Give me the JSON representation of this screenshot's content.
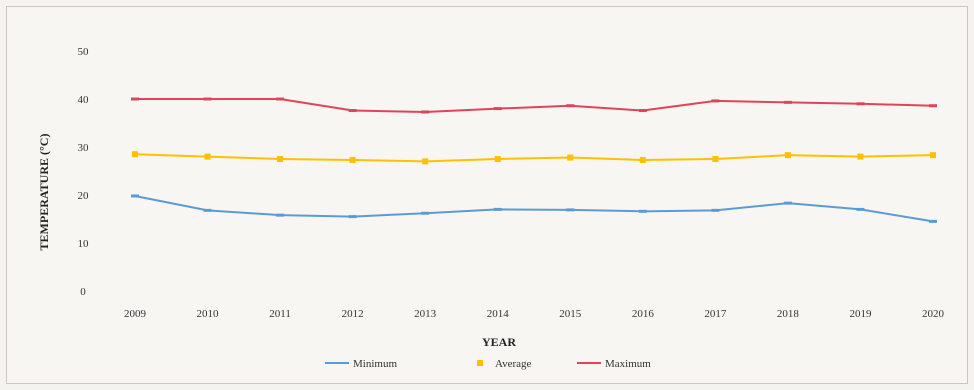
{
  "chart_data": {
    "type": "line",
    "title": "",
    "xlabel": "YEAR",
    "ylabel": "TEMPERATURE (°C)",
    "ylim": [
      0,
      50
    ],
    "yticks": [
      "0",
      "10",
      "20",
      "30",
      "40",
      "50"
    ],
    "categories": [
      "2009",
      "2010",
      "2011",
      "2012",
      "2013",
      "2014",
      "2015",
      "2016",
      "2017",
      "2018",
      "2019",
      "2020"
    ],
    "grid": false,
    "legend_position": "bottom",
    "series": [
      {
        "name": "Minimum",
        "color": "#5b9bd5",
        "marker": "dash",
        "values": [
          19.8,
          16.8,
          15.8,
          15.5,
          16.2,
          17,
          16.9,
          16.6,
          16.8,
          18.3,
          17,
          14.5
        ]
      },
      {
        "name": "Average",
        "color": "#ffc000",
        "marker": "square",
        "values": [
          28.5,
          28,
          27.5,
          27.3,
          27,
          27.5,
          27.8,
          27.3,
          27.5,
          28.3,
          28,
          28.3
        ]
      },
      {
        "name": "Maximum",
        "color": "#e0445a",
        "marker": "dash",
        "values": [
          40,
          40,
          40,
          37.6,
          37.3,
          38,
          38.6,
          37.6,
          39.6,
          39.3,
          39,
          38.6
        ]
      }
    ]
  }
}
